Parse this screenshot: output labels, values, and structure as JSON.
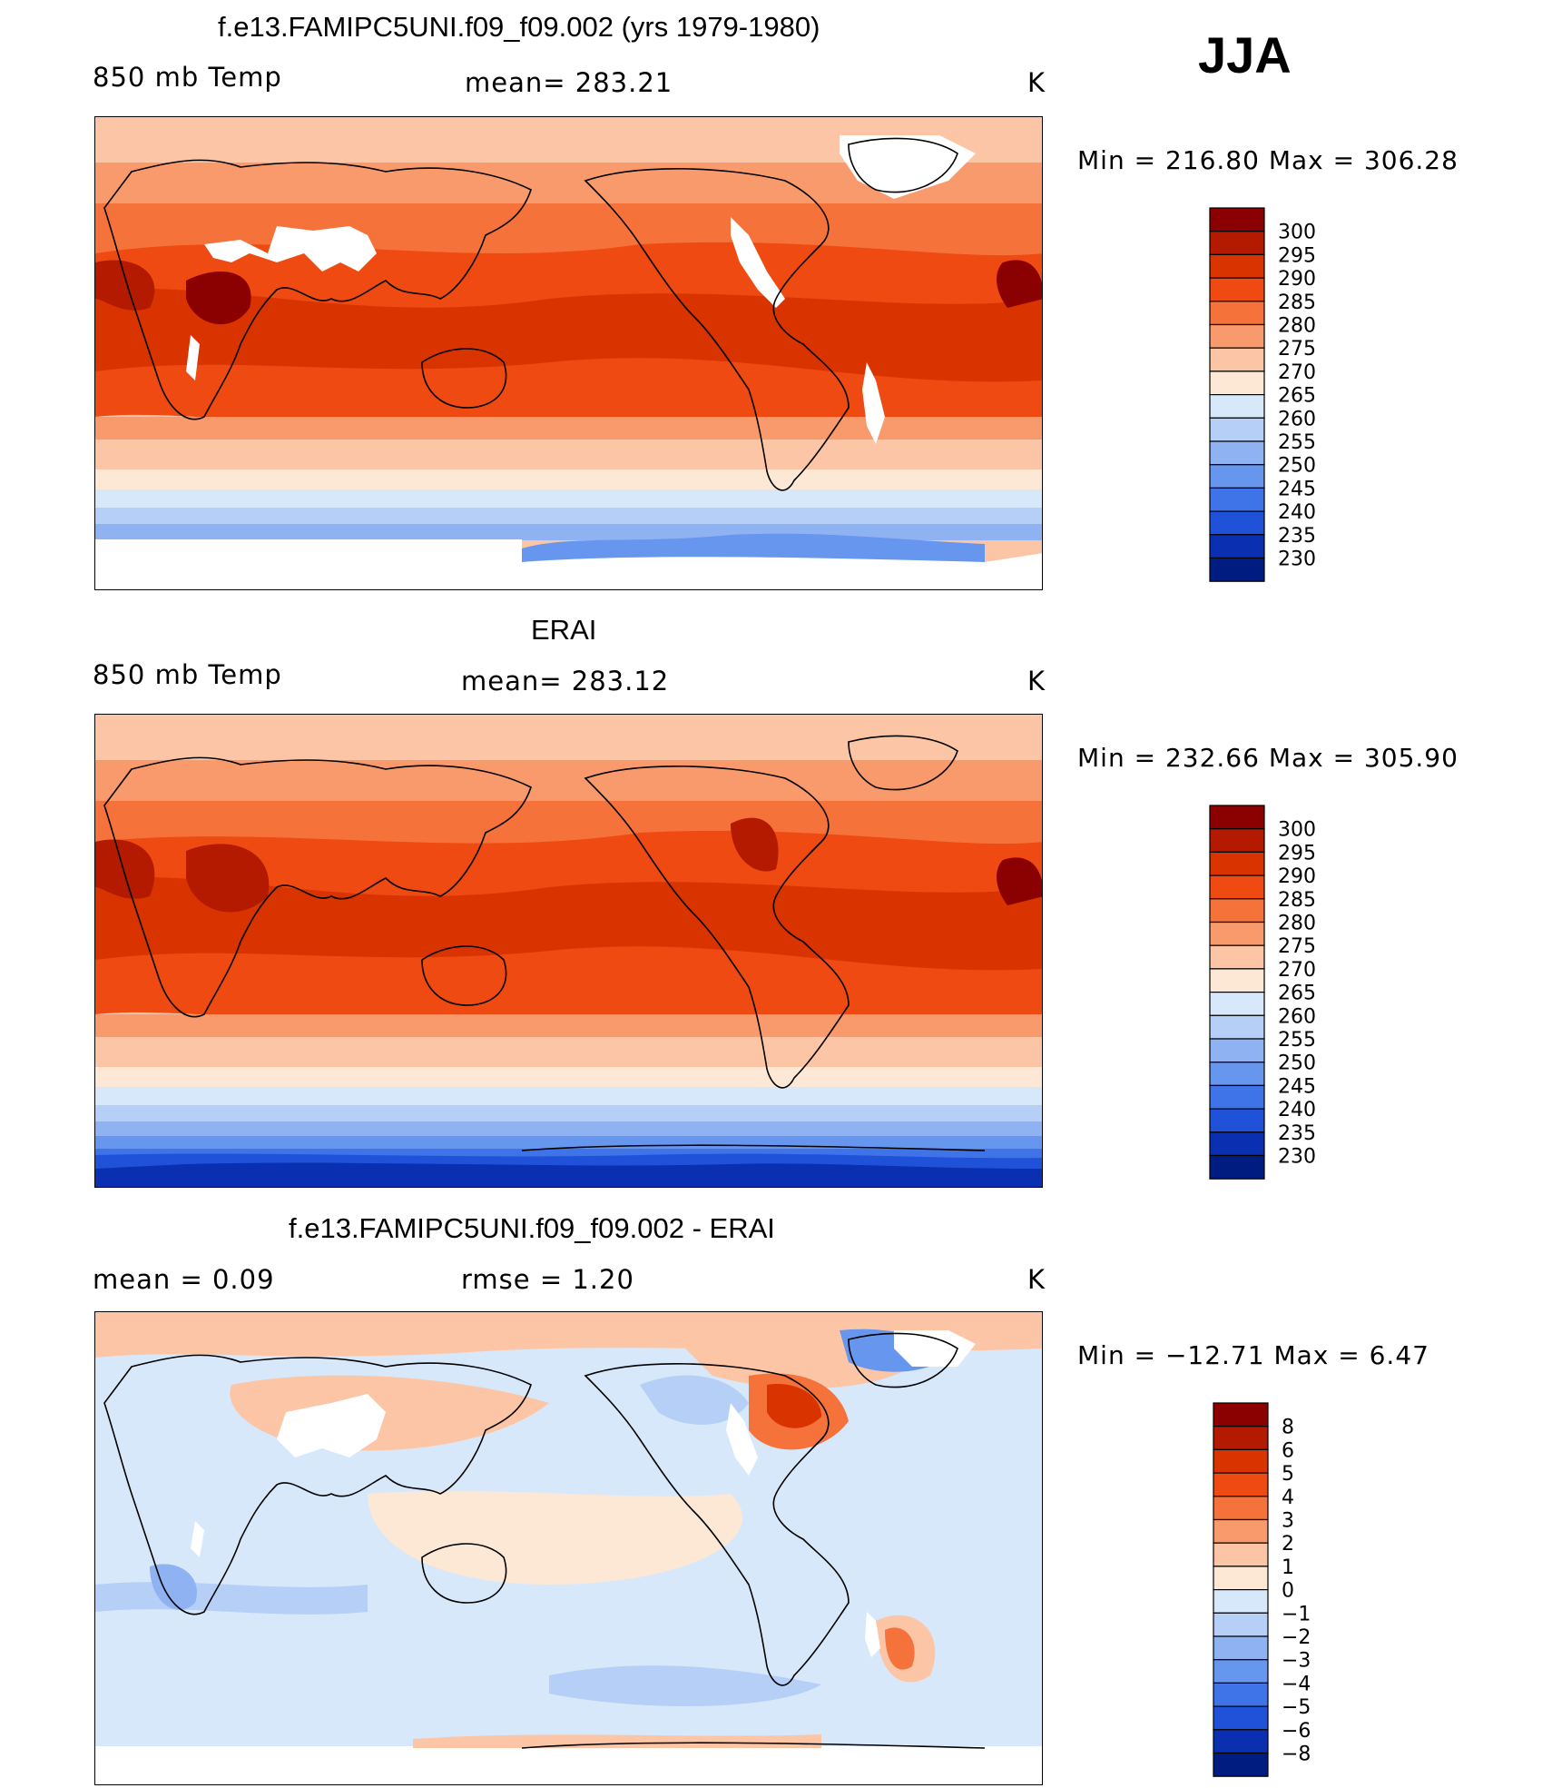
{
  "season": "JJA",
  "panels": [
    {
      "id": "model",
      "title": "f.e13.FAMIPC5UNI.f09_f09.002 (yrs 1979-1980)",
      "left_label": "850 mb Temp",
      "center_label": "mean= 283.21",
      "right_label": "K",
      "minmax": "Min = 216.80 Max = 306.28",
      "scheme": "abs",
      "colorbar": {
        "labels": [
          "300",
          "295",
          "290",
          "285",
          "280",
          "275",
          "270",
          "265",
          "260",
          "255",
          "250",
          "245",
          "240",
          "235",
          "230"
        ],
        "colors": [
          "#8b0000",
          "#b31a00",
          "#d93300",
          "#ee4a11",
          "#f5733b",
          "#f99a6d",
          "#fcc6a6",
          "#fde8d6",
          "#d8e8fb",
          "#b5cff7",
          "#8fb3f2",
          "#6796ee",
          "#3f73e8",
          "#1f52d8",
          "#0a2fb0",
          "#001c80"
        ]
      },
      "has_missing": true
    },
    {
      "id": "obs",
      "title": "ERAI",
      "left_label": "850 mb Temp",
      "center_label": "mean= 283.12",
      "right_label": "K",
      "minmax": "Min = 232.66 Max = 305.90",
      "scheme": "abs",
      "colorbar": {
        "labels": [
          "300",
          "295",
          "290",
          "285",
          "280",
          "275",
          "270",
          "265",
          "260",
          "255",
          "250",
          "245",
          "240",
          "235",
          "230"
        ],
        "colors": [
          "#8b0000",
          "#b31a00",
          "#d93300",
          "#ee4a11",
          "#f5733b",
          "#f99a6d",
          "#fcc6a6",
          "#fde8d6",
          "#d8e8fb",
          "#b5cff7",
          "#8fb3f2",
          "#6796ee",
          "#3f73e8",
          "#1f52d8",
          "#0a2fb0",
          "#001c80"
        ]
      },
      "has_missing": false
    },
    {
      "id": "diff",
      "title": "f.e13.FAMIPC5UNI.f09_f09.002 - ERAI",
      "left_label": "mean =    0.09",
      "center_label": "rmse =    1.20",
      "right_label": "K",
      "minmax": "Min = −12.71 Max =    6.47",
      "scheme": "diff",
      "colorbar": {
        "labels": [
          "8",
          "6",
          "5",
          "4",
          "3",
          "2",
          "1",
          "0",
          "−1",
          "−2",
          "−3",
          "−4",
          "−5",
          "−6",
          "−8"
        ],
        "colors": [
          "#8b0000",
          "#b31a00",
          "#d93300",
          "#ee4a11",
          "#f5733b",
          "#f99a6d",
          "#fcc6a6",
          "#fde8d6",
          "#d8e8fb",
          "#b5cff7",
          "#8fb3f2",
          "#6796ee",
          "#3f73e8",
          "#1f52d8",
          "#0a2fb0",
          "#001c80"
        ]
      },
      "has_missing": true
    }
  ]
}
